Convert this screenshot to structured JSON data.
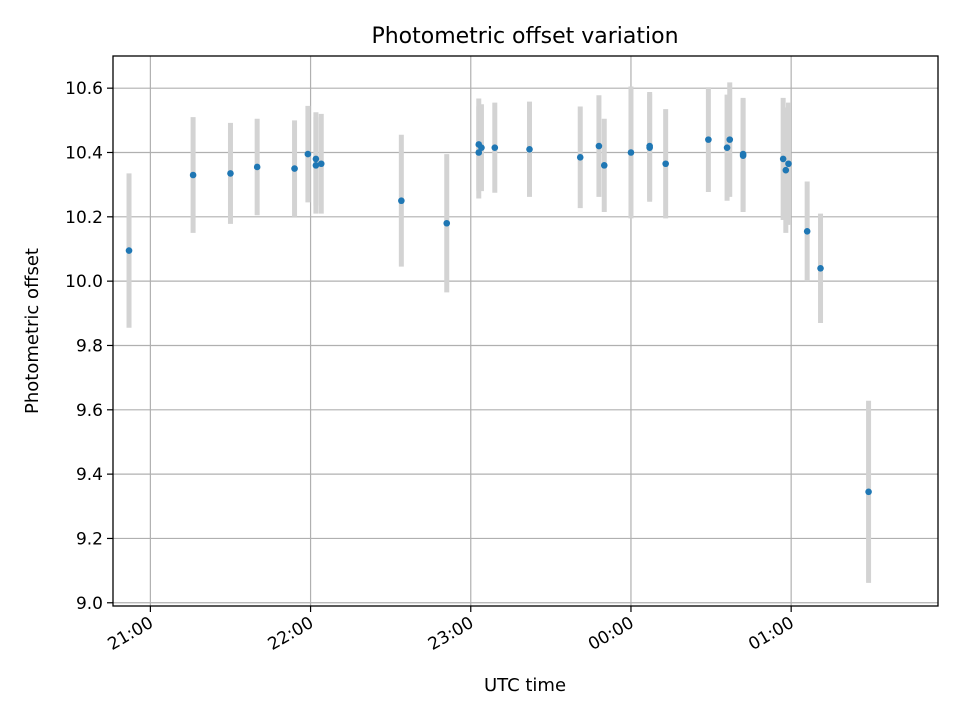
{
  "chart_data": {
    "type": "scatter",
    "title": "Photometric offset variation",
    "xlabel": "UTC time",
    "ylabel": "Photometric offset",
    "x_axis_type": "time",
    "xlim": [
      "20:46",
      "01:55"
    ],
    "ylim": [
      8.99,
      10.7
    ],
    "grid": true,
    "x_ticks": [
      "21:00",
      "22:00",
      "23:00",
      "00:00",
      "01:00"
    ],
    "y_ticks": [
      "9.0",
      "9.2",
      "9.4",
      "9.6",
      "9.8",
      "10.0",
      "10.2",
      "10.4",
      "10.6"
    ],
    "colors": {
      "marker": "#1f77b4",
      "errorbar": "#d3d3d3",
      "grid": "#b0b0b0"
    },
    "series": [
      {
        "points": [
          {
            "x": "20:52",
            "y": 10.095,
            "err": 0.24
          },
          {
            "x": "21:16",
            "y": 10.33,
            "err": 0.18
          },
          {
            "x": "21:30",
            "y": 10.335,
            "err": 0.157
          },
          {
            "x": "21:40",
            "y": 10.355,
            "err": 0.15
          },
          {
            "x": "21:54",
            "y": 10.35,
            "err": 0.15
          },
          {
            "x": "21:59",
            "y": 10.395,
            "err": 0.15
          },
          {
            "x": "22:02",
            "y": 10.36,
            "err": 0.15
          },
          {
            "x": "22:02",
            "y": 10.38,
            "err": 0.145
          },
          {
            "x": "22:04",
            "y": 10.365,
            "err": 0.155
          },
          {
            "x": "22:34",
            "y": 10.25,
            "err": 0.205
          },
          {
            "x": "22:51",
            "y": 10.18,
            "err": 0.215
          },
          {
            "x": "23:03",
            "y": 10.4,
            "err": 0.143
          },
          {
            "x": "23:03",
            "y": 10.425,
            "err": 0.143
          },
          {
            "x": "23:04",
            "y": 10.415,
            "err": 0.135
          },
          {
            "x": "23:09",
            "y": 10.415,
            "err": 0.14
          },
          {
            "x": "23:22",
            "y": 10.41,
            "err": 0.148
          },
          {
            "x": "23:41",
            "y": 10.385,
            "err": 0.158
          },
          {
            "x": "23:48",
            "y": 10.42,
            "err": 0.158
          },
          {
            "x": "23:50",
            "y": 10.36,
            "err": 0.145
          },
          {
            "x": "00:00",
            "y": 10.4,
            "err": 0.205
          },
          {
            "x": "00:07",
            "y": 10.42,
            "err": 0.168
          },
          {
            "x": "00:07",
            "y": 10.415,
            "err": 0.168
          },
          {
            "x": "00:13",
            "y": 10.365,
            "err": 0.17
          },
          {
            "x": "00:29",
            "y": 10.44,
            "err": 0.163
          },
          {
            "x": "00:36",
            "y": 10.415,
            "err": 0.165
          },
          {
            "x": "00:37",
            "y": 10.44,
            "err": 0.178
          },
          {
            "x": "00:42",
            "y": 10.39,
            "err": 0.175
          },
          {
            "x": "00:42",
            "y": 10.395,
            "err": 0.175
          },
          {
            "x": "00:57",
            "y": 10.38,
            "err": 0.19
          },
          {
            "x": "00:58",
            "y": 10.345,
            "err": 0.195
          },
          {
            "x": "00:59",
            "y": 10.365,
            "err": 0.19
          },
          {
            "x": "01:06",
            "y": 10.155,
            "err": 0.155
          },
          {
            "x": "01:11",
            "y": 10.04,
            "err": 0.17
          },
          {
            "x": "01:29",
            "y": 9.345,
            "err": 0.283
          }
        ]
      }
    ]
  }
}
